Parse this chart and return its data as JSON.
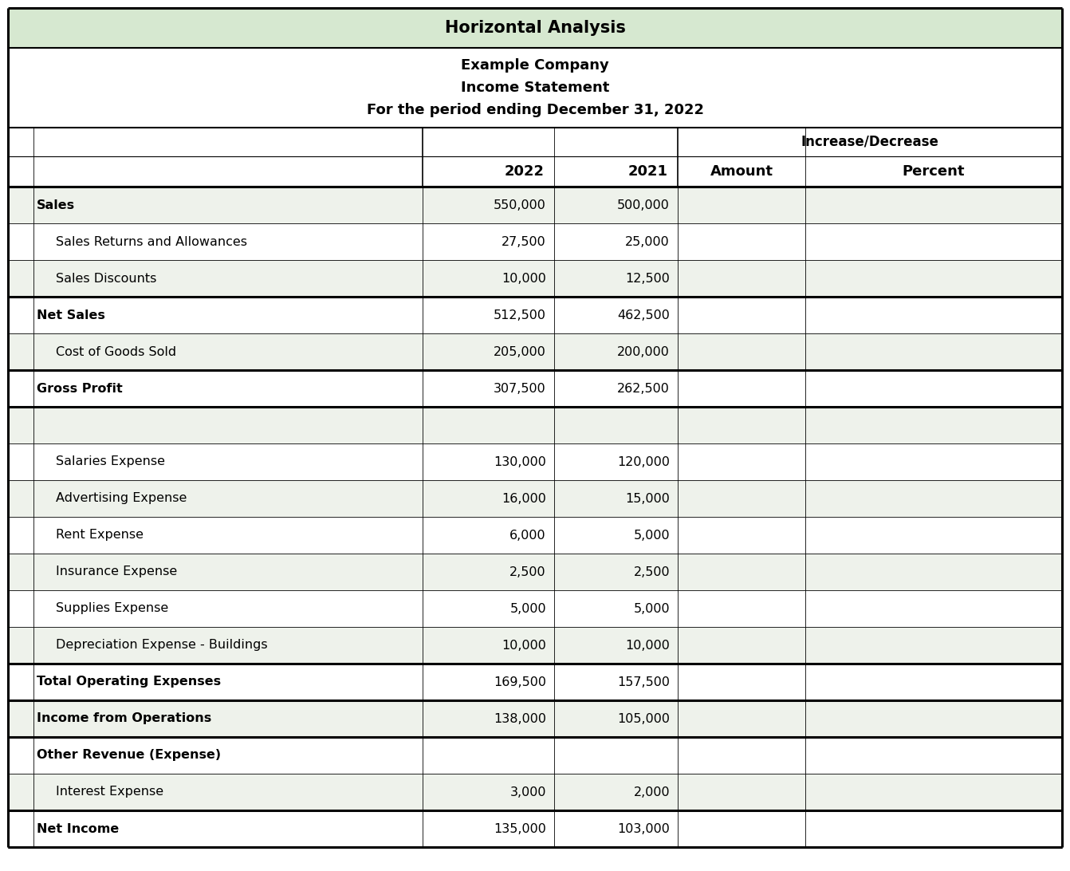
{
  "title_main": "Horizontal Analysis",
  "title_sub1": "Example Company",
  "title_sub2": "Income Statement",
  "title_sub3": "For the period ending December 31, 2022",
  "title_bg": "#d6e8d0",
  "border_color": "#000000",
  "rows": [
    {
      "label": "Sales",
      "indent": false,
      "val2022": "550,000",
      "val2021": "500,000",
      "bold": true,
      "thick_top": true
    },
    {
      "label": "Sales Returns and Allowances",
      "indent": true,
      "val2022": "27,500",
      "val2021": "25,000",
      "bold": false,
      "thick_top": false
    },
    {
      "label": "Sales Discounts",
      "indent": true,
      "val2022": "10,000",
      "val2021": "12,500",
      "bold": false,
      "thick_top": false
    },
    {
      "label": "Net Sales",
      "indent": false,
      "val2022": "512,500",
      "val2021": "462,500",
      "bold": true,
      "thick_top": true
    },
    {
      "label": "Cost of Goods Sold",
      "indent": true,
      "val2022": "205,000",
      "val2021": "200,000",
      "bold": false,
      "thick_top": false
    },
    {
      "label": "Gross Profit",
      "indent": false,
      "val2022": "307,500",
      "val2021": "262,500",
      "bold": true,
      "thick_top": true
    },
    {
      "label": "",
      "indent": false,
      "val2022": "",
      "val2021": "",
      "bold": false,
      "thick_top": true
    },
    {
      "label": "Salaries Expense",
      "indent": true,
      "val2022": "130,000",
      "val2021": "120,000",
      "bold": false,
      "thick_top": false
    },
    {
      "label": "Advertising Expense",
      "indent": true,
      "val2022": "16,000",
      "val2021": "15,000",
      "bold": false,
      "thick_top": false
    },
    {
      "label": "Rent Expense",
      "indent": true,
      "val2022": "6,000",
      "val2021": "5,000",
      "bold": false,
      "thick_top": false
    },
    {
      "label": "Insurance Expense",
      "indent": true,
      "val2022": "2,500",
      "val2021": "2,500",
      "bold": false,
      "thick_top": false
    },
    {
      "label": "Supplies Expense",
      "indent": true,
      "val2022": "5,000",
      "val2021": "5,000",
      "bold": false,
      "thick_top": false
    },
    {
      "label": "Depreciation Expense - Buildings",
      "indent": true,
      "val2022": "10,000",
      "val2021": "10,000",
      "bold": false,
      "thick_top": false
    },
    {
      "label": "Total Operating Expenses",
      "indent": false,
      "val2022": "169,500",
      "val2021": "157,500",
      "bold": true,
      "thick_top": true
    },
    {
      "label": "Income from Operations",
      "indent": false,
      "val2022": "138,000",
      "val2021": "105,000",
      "bold": true,
      "thick_top": true
    },
    {
      "label": "Other Revenue (Expense)",
      "indent": false,
      "val2022": "",
      "val2021": "",
      "bold": true,
      "thick_top": true
    },
    {
      "label": "Interest Expense",
      "indent": true,
      "val2022": "3,000",
      "val2021": "2,000",
      "bold": false,
      "thick_top": false
    },
    {
      "label": "Net Income",
      "indent": false,
      "val2022": "135,000",
      "val2021": "103,000",
      "bold": true,
      "thick_top": true
    }
  ]
}
